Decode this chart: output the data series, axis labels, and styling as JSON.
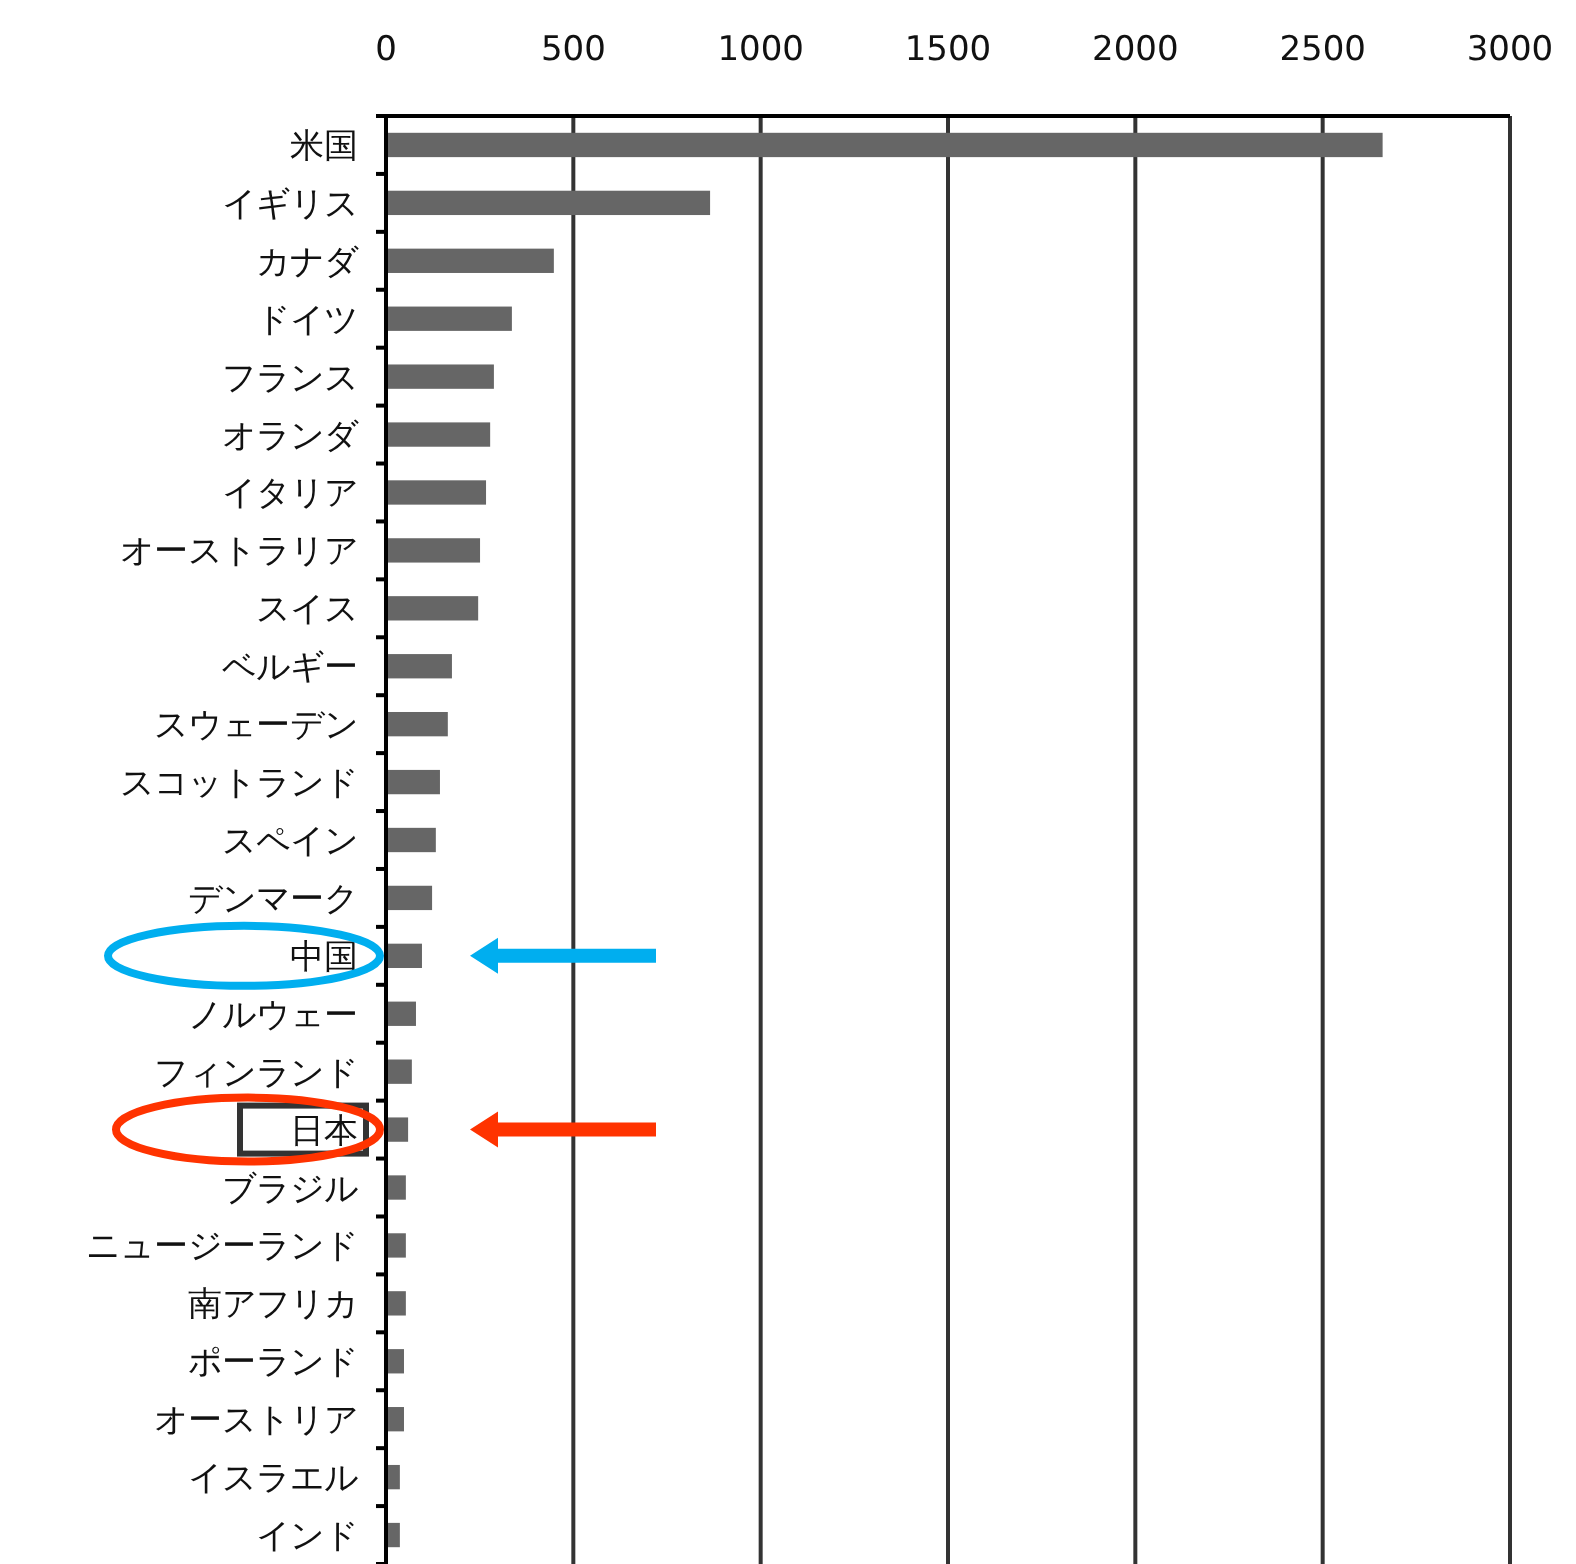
{
  "chart_data": {
    "type": "bar",
    "orientation": "horizontal",
    "categories": [
      "米国",
      "イギリス",
      "カナダ",
      "ドイツ",
      "フランス",
      "オランダ",
      "イタリア",
      "オーストラリア",
      "スイス",
      "ベルギー",
      "スウェーデン",
      "スコットランド",
      "スペイン",
      "デンマーク",
      "中国",
      "ノルウェー",
      "フィンランド",
      "日本",
      "ブラジル",
      "ニュージーランド",
      "南アフリカ",
      "ポーランド",
      "オーストリア",
      "イスラエル",
      "インド"
    ],
    "values": [
      2660,
      865,
      448,
      336,
      288,
      278,
      267,
      251,
      246,
      176,
      165,
      144,
      133,
      123,
      96,
      80,
      69,
      59,
      53,
      53,
      53,
      48,
      48,
      37,
      37
    ],
    "color": "#666666",
    "xlim": [
      0,
      3000
    ],
    "xticks": [
      0,
      500,
      1000,
      1500,
      2000,
      2500,
      3000
    ],
    "grid": "x"
  }
}
